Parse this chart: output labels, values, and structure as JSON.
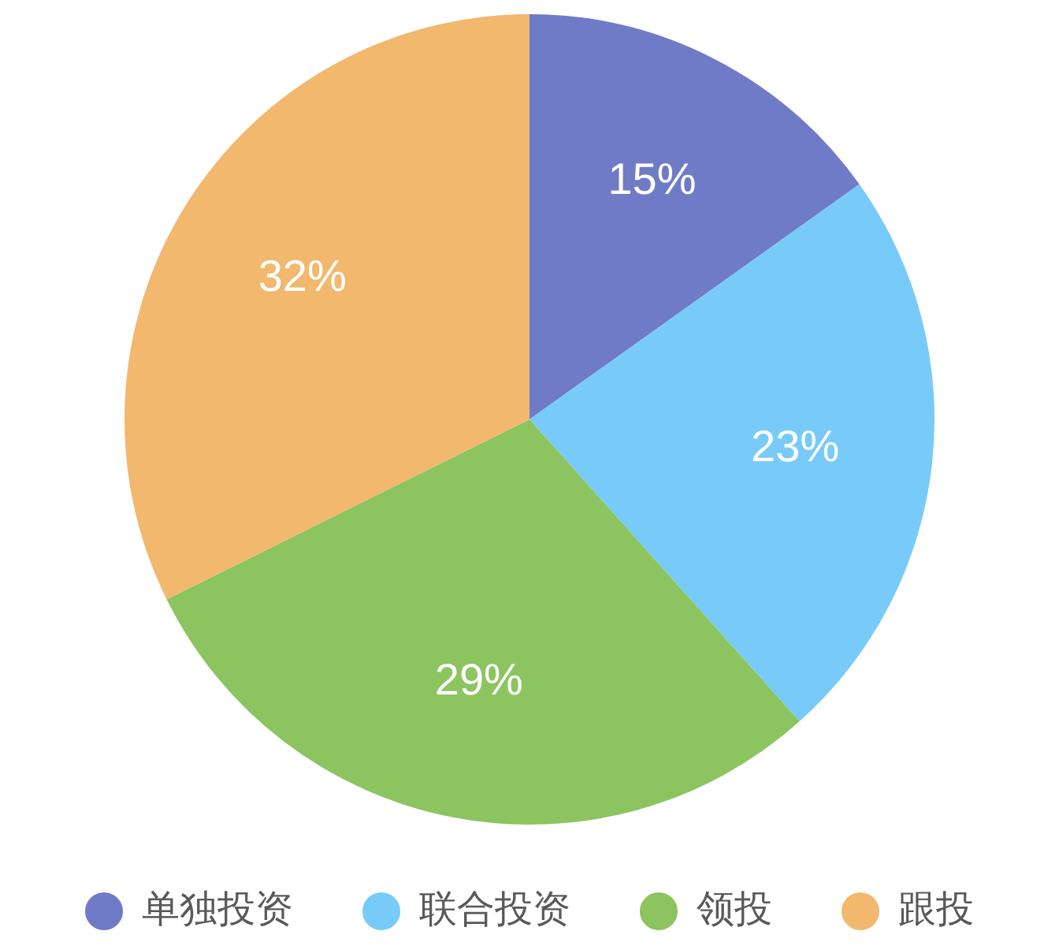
{
  "chart_data": {
    "type": "pie",
    "categories": [
      "单独投资",
      "联合投资",
      "领投",
      "跟投"
    ],
    "values": [
      15,
      23,
      29,
      32
    ],
    "colors": [
      "#707bc8",
      "#78cbf8",
      "#8cc460",
      "#f2b86e"
    ],
    "value_labels": [
      "15%",
      "23%",
      "29%",
      "32%"
    ],
    "legend": "bottom"
  }
}
